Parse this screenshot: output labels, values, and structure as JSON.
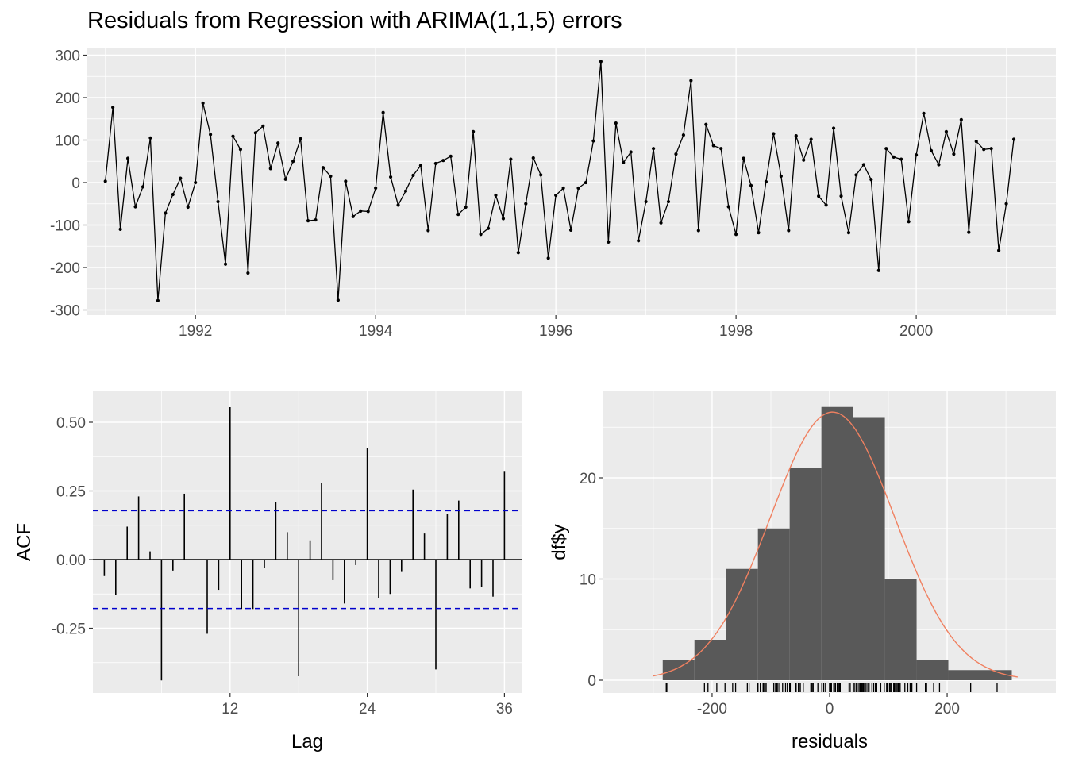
{
  "title": "Residuals from Regression with ARIMA(1,1,5) errors",
  "colors": {
    "panel": "#ebebeb",
    "grid": "#ffffff",
    "line": "#000000",
    "bar": "#595959",
    "density": "#f08060",
    "confidence": "#0000cc"
  },
  "chart_data": [
    {
      "type": "line",
      "xlim": [
        1990.8,
        2001.55
      ],
      "ylim": [
        -300,
        300
      ],
      "x_ticks": [
        1992,
        1994,
        1996,
        1998,
        2000
      ],
      "x_tick_labels": [
        "1992",
        "1994",
        "1996",
        "1998",
        "2000"
      ],
      "y_ticks": [
        -300,
        -200,
        -100,
        0,
        100,
        200,
        300
      ],
      "y_tick_labels": [
        "-300",
        "-200",
        "-100",
        "0",
        "100",
        "200",
        "300"
      ],
      "start": 1991.0,
      "frequency": 12,
      "values": [
        3,
        177,
        -110,
        57,
        -57,
        -10,
        105,
        -278,
        -72,
        -28,
        10,
        -58,
        0,
        187,
        113,
        -45,
        -192,
        109,
        78,
        -213,
        117,
        133,
        33,
        93,
        8,
        50,
        103,
        -90,
        -88,
        35,
        15,
        -277,
        3,
        -80,
        -67,
        -68,
        -13,
        165,
        13,
        -53,
        -20,
        17,
        40,
        -113,
        45,
        52,
        62,
        -75,
        -58,
        120,
        -122,
        -108,
        -30,
        -85,
        55,
        -165,
        -50,
        58,
        18,
        -178,
        -30,
        -13,
        -112,
        -13,
        0,
        98,
        285,
        -140,
        140,
        47,
        72,
        -137,
        -45,
        80,
        -95,
        -45,
        67,
        112,
        240,
        -113,
        137,
        87,
        80,
        -57,
        -122,
        57,
        -7,
        -118,
        2,
        115,
        15,
        -113,
        110,
        53,
        102,
        -32,
        -53,
        128,
        -32,
        -118,
        18,
        42,
        7,
        -207,
        80,
        60,
        55,
        -92,
        65,
        163,
        75,
        42,
        120,
        67,
        148,
        -117,
        97,
        78,
        80,
        -160,
        -50,
        102
      ]
    },
    {
      "type": "bar",
      "xlabel": "Lag",
      "ylabel": "ACF",
      "xlim": [
        0,
        37.5
      ],
      "ylim": [
        -0.48,
        0.6
      ],
      "x_ticks": [
        12,
        24,
        36
      ],
      "x_tick_labels": [
        "12",
        "24",
        "36"
      ],
      "y_ticks": [
        -0.25,
        0,
        0.25,
        0.5
      ],
      "y_tick_labels": [
        "-0.25",
        "0.00",
        "0.25",
        "0.50"
      ],
      "lags": [
        1,
        2,
        3,
        4,
        5,
        6,
        7,
        8,
        9,
        10,
        11,
        12,
        13,
        14,
        15,
        16,
        17,
        18,
        19,
        20,
        21,
        22,
        23,
        24,
        25,
        26,
        27,
        28,
        29,
        30,
        31,
        32,
        33,
        34,
        35,
        36
      ],
      "values": [
        -0.06,
        -0.13,
        0.12,
        0.23,
        0.03,
        -0.44,
        -0.04,
        0.24,
        0,
        -0.27,
        -0.11,
        0.555,
        -0.18,
        -0.18,
        -0.03,
        0.21,
        0.1,
        -0.425,
        0.07,
        0.28,
        -0.075,
        -0.16,
        -0.02,
        0.405,
        -0.14,
        -0.125,
        -0.045,
        0.255,
        0.095,
        -0.4,
        0.165,
        0.215,
        -0.105,
        -0.1,
        -0.135,
        0.32
      ],
      "confidence_bound": 0.178
    },
    {
      "type": "bar",
      "xlabel": "residuals",
      "ylabel": "df$y",
      "xlim": [
        -385,
        385
      ],
      "ylim": [
        -1.3,
        28
      ],
      "x_ticks": [
        -200,
        0,
        200
      ],
      "x_tick_labels": [
        "-200",
        "0",
        "200"
      ],
      "y_ticks": [
        0,
        10,
        20
      ],
      "y_tick_labels": [
        "0",
        "10",
        "20"
      ],
      "bin_edges": [
        -284,
        -230,
        -176,
        -122,
        -68,
        -14,
        40,
        94,
        148,
        202,
        256,
        310
      ],
      "counts": [
        2,
        4,
        11,
        15,
        21,
        27,
        26,
        10,
        2,
        1,
        1
      ],
      "density": {
        "mean": 5,
        "sd": 106,
        "peak_count": 26.5,
        "range": [
          -300,
          320
        ]
      },
      "rug": [
        -278,
        -277,
        -213,
        -207,
        -192,
        -178,
        -165,
        -160,
        -140,
        -137,
        -122,
        -122,
        -118,
        -118,
        -117,
        -113,
        -113,
        -113,
        -112,
        -110,
        -108,
        -95,
        -92,
        -90,
        -88,
        -85,
        -80,
        -75,
        -72,
        -68,
        -67,
        -58,
        -57,
        -57,
        -53,
        -53,
        -50,
        -50,
        -45,
        -45,
        -32,
        -30,
        -30,
        -28,
        -20,
        -13,
        -13,
        -13,
        -10,
        -7,
        0,
        0,
        2,
        3,
        3,
        7,
        8,
        10,
        13,
        15,
        15,
        17,
        18,
        18,
        33,
        35,
        40,
        42,
        45,
        47,
        50,
        52,
        53,
        55,
        55,
        57,
        57,
        58,
        60,
        62,
        65,
        67,
        67,
        72,
        75,
        78,
        78,
        80,
        80,
        80,
        87,
        93,
        97,
        98,
        102,
        102,
        103,
        105,
        109,
        110,
        112,
        113,
        115,
        117,
        120,
        120,
        128,
        133,
        137,
        140,
        148,
        163,
        165,
        177,
        187,
        240,
        285
      ]
    }
  ]
}
